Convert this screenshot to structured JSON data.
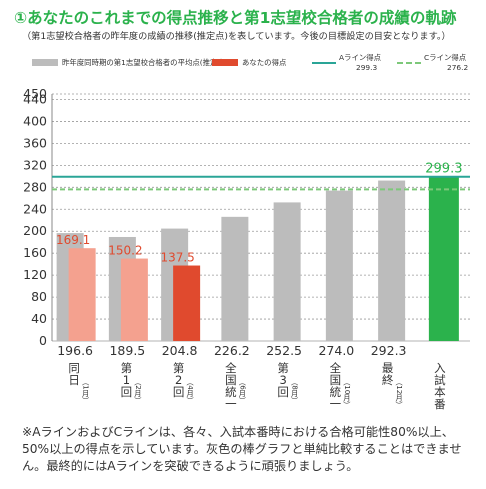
{
  "title": "①あなたのこれまでの得点推移と第1志望校合格者の成績の軌跡",
  "subtitle": "（第1志望校合格者の昨年度の成績の推移(推定点)を表しています。今後の目標設定の目安となります。）",
  "legend": {
    "gray_label": "昨年度同時期の第1志望校合格者の平均点(推定点)",
    "red_label": "あなたの得点",
    "a_line_label": "Aライン得点",
    "a_line_value": "299.3",
    "c_line_label": "Cライン得点",
    "c_line_value": "276.2"
  },
  "footnote": "※AラインおよびCラインは、各々、入試本番時における合格可能性80%以上、50%以上の得点を示しています。灰色の棒グラフと単純比較することはできません。最終的にはAラインを突破できるように頑張りましょう。",
  "colors": {
    "gray": "#bcbcbc",
    "red_light": "#f4a18f",
    "red_dark": "#e04a2e",
    "green": "#2bb24c",
    "teal": "#2aa597",
    "c_dash": "#7dc87a"
  },
  "chart_data": {
    "type": "bar",
    "ylim": [
      0,
      450
    ],
    "yticks": [
      0,
      40,
      80,
      120,
      160,
      200,
      240,
      280,
      320,
      360,
      400,
      440,
      450
    ],
    "categories": [
      "同日（1月）",
      "第1回（2月）",
      "第2回（4月）",
      "全国統一（6月）",
      "第3回（8月）",
      "全国統一（10月）",
      "最終（12月）",
      "入試本番"
    ],
    "category_labels": [
      {
        "main": [
          "同",
          "日"
        ],
        "sub": "（1月）"
      },
      {
        "main": [
          "第",
          "1",
          "回"
        ],
        "sub": "（2月）"
      },
      {
        "main": [
          "第",
          "2",
          "回"
        ],
        "sub": "（4月）"
      },
      {
        "main": [
          "全",
          "国",
          "統",
          "一"
        ],
        "sub": "（6月）"
      },
      {
        "main": [
          "第",
          "3",
          "回"
        ],
        "sub": "（8月）"
      },
      {
        "main": [
          "全",
          "国",
          "統",
          "一"
        ],
        "sub": "（10月）"
      },
      {
        "main": [
          "最",
          "終"
        ],
        "sub": "（12月）"
      },
      {
        "main": [
          "入",
          "試",
          "本",
          "番"
        ],
        "sub": ""
      }
    ],
    "series": [
      {
        "name": "昨年度同時期の第1志望校合格者の平均点(推定点)",
        "values": [
          196.6,
          189.5,
          204.8,
          226.2,
          252.5,
          274.0,
          292.3,
          null
        ]
      },
      {
        "name": "あなたの得点",
        "values": [
          169.1,
          150.2,
          137.5,
          null,
          null,
          null,
          null,
          299.3
        ]
      }
    ],
    "gray_value_labels": [
      "196.6",
      "189.5",
      "204.8",
      "226.2",
      "252.5",
      "274.0",
      "292.3"
    ],
    "red_value_labels": [
      "169.1",
      "150.2",
      "137.5"
    ],
    "final_value_label": "299.3",
    "a_line": 299.3,
    "c_line": 276.2,
    "grid": true
  }
}
